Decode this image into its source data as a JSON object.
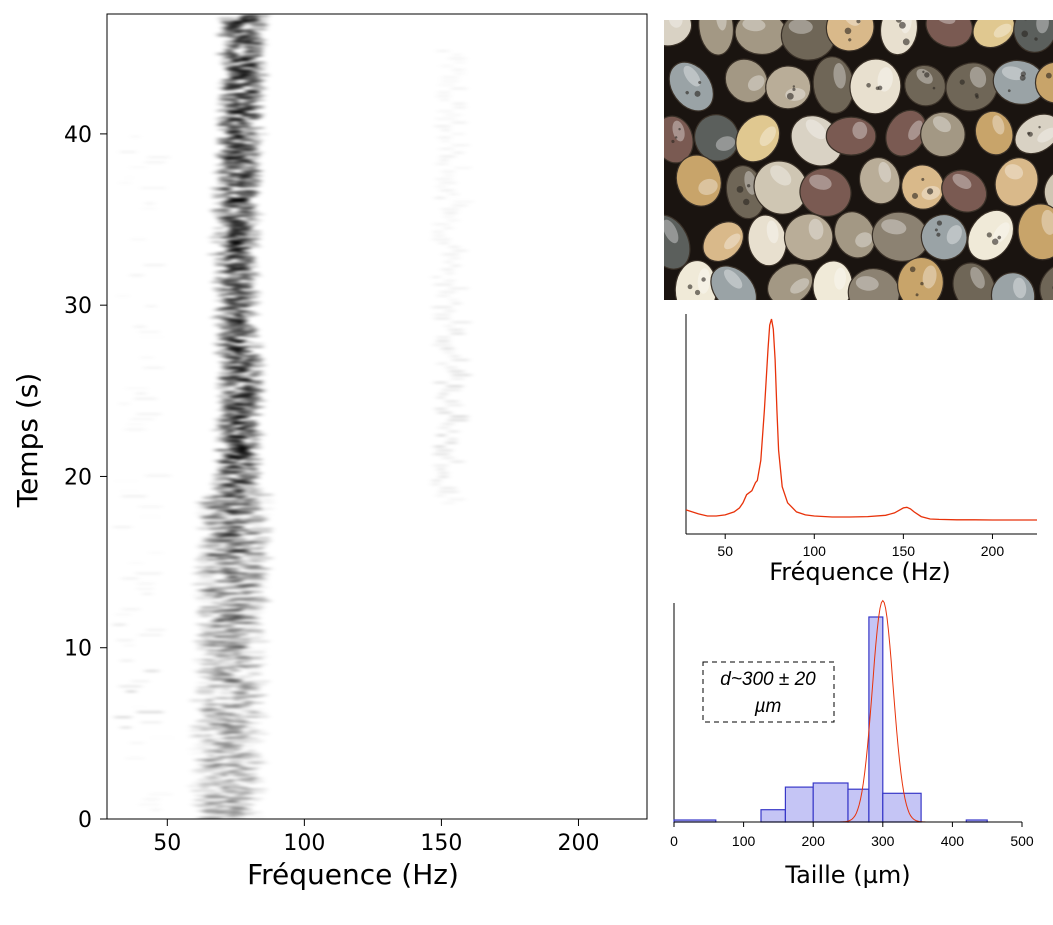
{
  "spectrogram": {
    "type": "heatmap",
    "xlabel": "Fréquence (Hz)",
    "ylabel": "Temps (s)",
    "xlim": [
      28,
      225
    ],
    "ylim": [
      0,
      47
    ],
    "xticks": [
      "50",
      "100",
      "150",
      "200"
    ],
    "yticks": [
      "0",
      "10",
      "20",
      "30",
      "40"
    ],
    "colormap": "white-to-black",
    "main_ridge": [
      {
        "t": 0,
        "f": 72,
        "i": 0.35
      },
      {
        "t": 5,
        "f": 72,
        "i": 0.35
      },
      {
        "t": 10,
        "f": 73,
        "i": 0.4
      },
      {
        "t": 15,
        "f": 74,
        "i": 0.55
      },
      {
        "t": 19,
        "f": 75,
        "i": 0.8
      },
      {
        "t": 22,
        "f": 76,
        "i": 1.0
      },
      {
        "t": 26,
        "f": 77,
        "i": 0.95
      },
      {
        "t": 30,
        "f": 75,
        "i": 0.7
      },
      {
        "t": 34,
        "f": 75,
        "i": 0.9
      },
      {
        "t": 38,
        "f": 76,
        "i": 0.95
      },
      {
        "t": 42,
        "f": 77,
        "i": 1.0
      },
      {
        "t": 47,
        "f": 78,
        "i": 1.0
      }
    ],
    "harmonic": [
      {
        "t": 19,
        "f": 153,
        "i": 0.12
      },
      {
        "t": 25,
        "f": 154,
        "i": 0.15
      },
      {
        "t": 31,
        "f": 153,
        "i": 0.06
      },
      {
        "t": 38,
        "f": 154,
        "i": 0.07
      },
      {
        "t": 44,
        "f": 155,
        "i": 0.05
      }
    ]
  },
  "photo": {
    "subject": "sand-grains",
    "background": "#1a1410",
    "grain_colors": [
      "#d9d2c4",
      "#e8e0cf",
      "#b9ad98",
      "#8c8272",
      "#cfc6b3",
      "#f0ead8",
      "#a39884",
      "#6f6657",
      "#c8a46a",
      "#d9b98a",
      "#9aa3a6",
      "#5b5f5c",
      "#7a5a52",
      "#e0c890"
    ]
  },
  "spectrum": {
    "type": "line",
    "xlabel": "Fréquence (Hz)",
    "xlim": [
      28,
      225
    ],
    "xticks": [
      "50",
      "100",
      "150",
      "200"
    ],
    "color": "#e8320a",
    "x": [
      28,
      35,
      40,
      45,
      50,
      55,
      58,
      60,
      62,
      65,
      67,
      68,
      70,
      72,
      74,
      75,
      76,
      77,
      78,
      79,
      80,
      82,
      85,
      90,
      95,
      100,
      110,
      120,
      130,
      140,
      145,
      148,
      150,
      152,
      154,
      156,
      160,
      165,
      170,
      180,
      190,
      200,
      210,
      225
    ],
    "y": [
      0.055,
      0.035,
      0.025,
      0.025,
      0.03,
      0.045,
      0.065,
      0.09,
      0.13,
      0.15,
      0.19,
      0.2,
      0.3,
      0.55,
      0.85,
      0.97,
      1.0,
      0.95,
      0.8,
      0.55,
      0.35,
      0.17,
      0.09,
      0.045,
      0.03,
      0.025,
      0.02,
      0.02,
      0.022,
      0.028,
      0.04,
      0.055,
      0.065,
      0.068,
      0.06,
      0.045,
      0.022,
      0.01,
      0.008,
      0.006,
      0.006,
      0.005,
      0.005,
      0.005
    ]
  },
  "size_hist": {
    "type": "bar",
    "xlabel": "Taille (µm)",
    "xlim": [
      0,
      500
    ],
    "xticks": [
      "0",
      "100",
      "200",
      "300",
      "400",
      "500"
    ],
    "bar_color": "#c5c5f5",
    "bar_edge": "#3838c8",
    "fit_color": "#e8320a",
    "bins": [
      {
        "x0": 0,
        "x1": 60,
        "v": 0.01
      },
      {
        "x0": 60,
        "x1": 125,
        "v": 0.0
      },
      {
        "x0": 125,
        "x1": 160,
        "v": 0.06
      },
      {
        "x0": 160,
        "x1": 200,
        "v": 0.17
      },
      {
        "x0": 200,
        "x1": 250,
        "v": 0.19
      },
      {
        "x0": 250,
        "x1": 280,
        "v": 0.16
      },
      {
        "x0": 280,
        "x1": 300,
        "v": 1.0
      },
      {
        "x0": 300,
        "x1": 355,
        "v": 0.14
      },
      {
        "x0": 355,
        "x1": 420,
        "v": 0.0
      },
      {
        "x0": 420,
        "x1": 450,
        "v": 0.01
      }
    ],
    "fit": {
      "mu": 300,
      "sigma": 15,
      "peak": 1.08
    },
    "annotation_line1": "d~300 ± 20",
    "annotation_line2": "µm"
  }
}
